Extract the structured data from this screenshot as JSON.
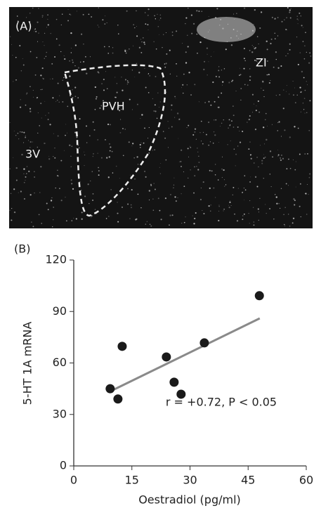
{
  "panel_a": {
    "label": "(A)",
    "regions": [
      "ZI",
      "PVH",
      "3V"
    ]
  },
  "chart_data": {
    "type": "scatter",
    "panel_label": "(B)",
    "xlabel": "Oestradiol (pg/ml)",
    "ylabel": "5-HT 1A mRNA",
    "series": [
      {
        "color": "#1a1a1a",
        "x": [
          9.4,
          11.4,
          12.5,
          23.9,
          25.9,
          27.7,
          33.7,
          47.9
        ],
        "values": [
          45,
          39,
          69.7,
          63.5,
          48.8,
          41.8,
          71.7,
          99.2
        ]
      }
    ],
    "fit": {
      "color": "#8a8a8a",
      "x": [
        9,
        48
      ],
      "values": [
        43,
        86
      ]
    },
    "annotation": "r = +0.72, P < 0.05",
    "xlim": [
      0,
      60
    ],
    "xticks": [
      0,
      15,
      30,
      45,
      60
    ],
    "ylim": [
      0,
      120
    ],
    "yticks": [
      0,
      30,
      60,
      90,
      120
    ]
  }
}
